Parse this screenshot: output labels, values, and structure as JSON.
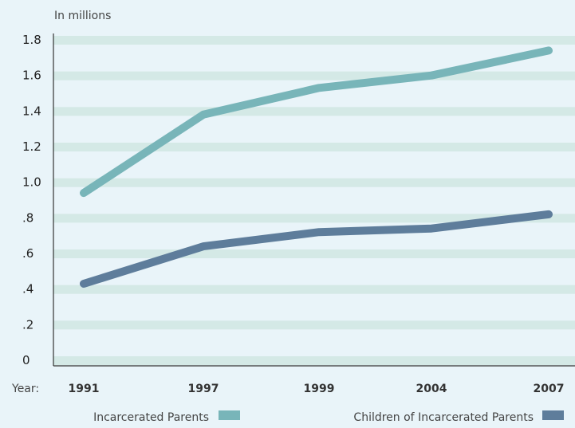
{
  "chart_data": {
    "type": "line",
    "unit_label": "In millions",
    "x_prefix_label": "Year:",
    "categories": [
      "1991",
      "1997",
      "1999",
      "2004",
      "2007"
    ],
    "series": [
      {
        "name": "Incarcerated Parents",
        "color": "#78b5b9",
        "values": [
          0.94,
          1.38,
          1.53,
          1.6,
          1.74
        ]
      },
      {
        "name": "Children of Incarcerated Parents",
        "color": "#5e7d9b",
        "values": [
          0.43,
          0.64,
          0.72,
          0.74,
          0.82
        ]
      }
    ],
    "ylim": [
      0,
      1.8
    ],
    "yticks": [
      0,
      0.2,
      0.4,
      0.6,
      0.8,
      1.0,
      1.2,
      1.4,
      1.6,
      1.8
    ],
    "ytick_labels": [
      "0",
      ".2",
      ".4",
      ".6",
      ".8",
      "1.0",
      "1.2",
      "1.4",
      "1.6",
      "1.8"
    ],
    "grid": true,
    "legend_position": "bottom"
  },
  "colors": {
    "background": "#e9f4f9",
    "grid_band": "#d4e9e6",
    "axis": "#333333"
  }
}
